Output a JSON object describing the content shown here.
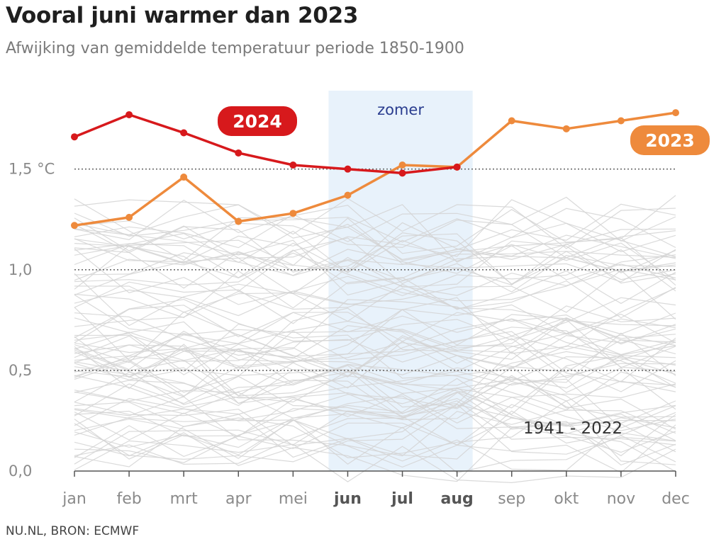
{
  "chart_data": {
    "type": "line",
    "title": "Vooral juni warmer dan 2023",
    "subtitle": "Afwijking van gemiddelde temperatuur periode 1850-1900",
    "categories": [
      "jan",
      "feb",
      "mrt",
      "apr",
      "mei",
      "jun",
      "jul",
      "aug",
      "sep",
      "okt",
      "nov",
      "dec"
    ],
    "highlight_categories": [
      "jun",
      "jul",
      "aug"
    ],
    "y_ticks": [
      {
        "value": 0.0,
        "label": "0,0"
      },
      {
        "value": 0.5,
        "label": "0,5"
      },
      {
        "value": 1.0,
        "label": "1,0"
      },
      {
        "value": 1.5,
        "label": "1,5 °C"
      }
    ],
    "ylim": [
      0,
      1.9
    ],
    "grid": "dotted at 0,5 / 1,0 / 1,5",
    "shaded_region": {
      "from": "jun",
      "to": "aug",
      "label": "zomer",
      "color": "#e8f2fb"
    },
    "series": [
      {
        "name": "2024",
        "color": "#d7191c",
        "values": [
          1.66,
          1.77,
          1.68,
          1.58,
          1.52,
          1.5,
          1.48,
          1.51,
          null,
          null,
          null,
          null
        ]
      },
      {
        "name": "2023",
        "color": "#ee8a3c",
        "values": [
          1.22,
          1.26,
          1.46,
          1.24,
          1.28,
          1.37,
          1.52,
          1.51,
          1.74,
          1.7,
          1.74,
          1.78
        ]
      }
    ],
    "background_series": {
      "label": "1941 - 2022",
      "color": "#d3d3d3"
    }
  },
  "source": "NU.NL, BRON: ECMWF"
}
